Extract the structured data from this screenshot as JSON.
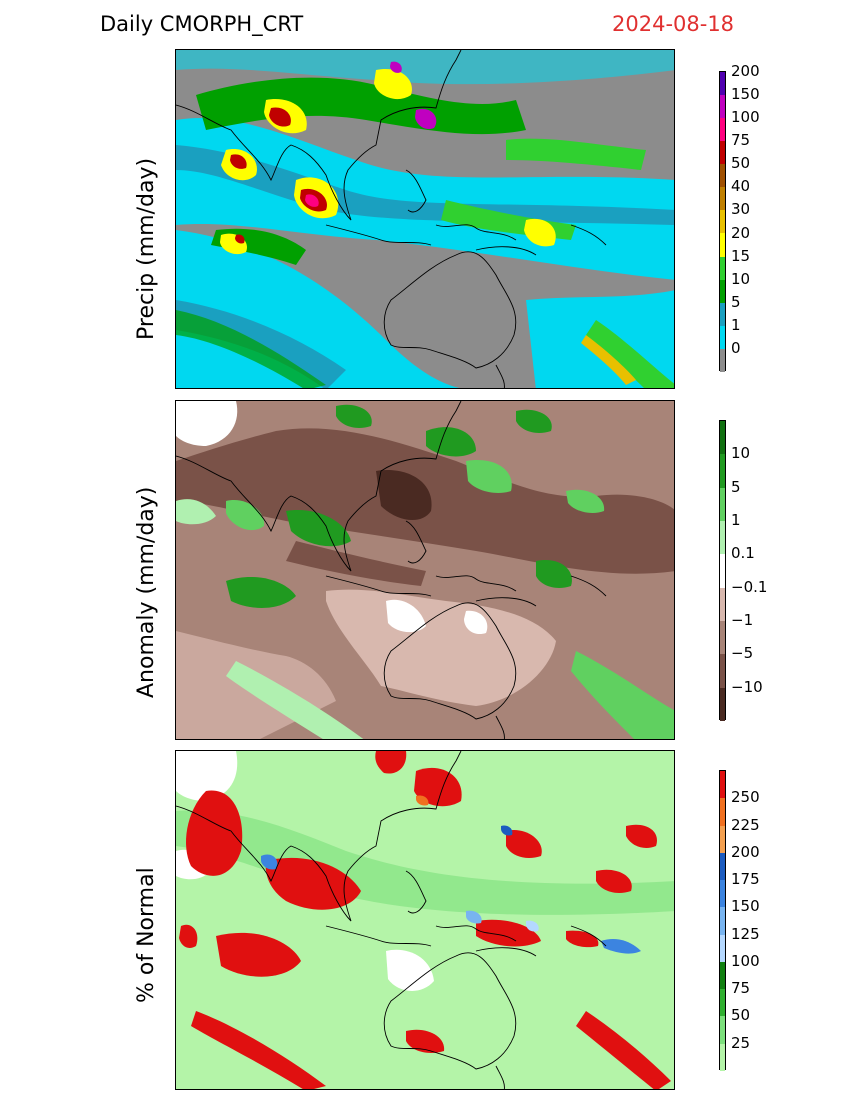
{
  "header": {
    "title_left": "Daily  CMORPH_CRT",
    "date": "2024-08-18"
  },
  "panels": [
    {
      "label": "Precip (mm/day)",
      "colorbar": {
        "colors": [
          "#8c8c8c",
          "#00d8f0",
          "#1aa0c0",
          "#00a000",
          "#30d030",
          "#ffff00",
          "#e8c000",
          "#c08000",
          "#a05000",
          "#c00000",
          "#ff0080",
          "#c000c0",
          "#5000b0"
        ],
        "labels": [
          "0",
          "1",
          "5",
          "10",
          "15",
          "20",
          "30",
          "40",
          "50",
          "75",
          "100",
          "150",
          "200"
        ]
      }
    },
    {
      "label": "Anomaly (mm/day)",
      "colorbar": {
        "colors": [
          "#4a2a22",
          "#7a5248",
          "#a88478",
          "#d8b8ae",
          "#ffffff",
          "#b0f0b0",
          "#60d060",
          "#209a20",
          "#107010"
        ],
        "labels": [
          "−10",
          "−5",
          "−1",
          "−0.1",
          "0.1",
          "1",
          "5",
          "10"
        ]
      }
    },
    {
      "label": "% of Normal",
      "colorbar": {
        "colors": [
          "#b4f4a8",
          "#7ce07c",
          "#30b030",
          "#108010",
          "#b4d8ff",
          "#78b4f0",
          "#3c84e0",
          "#1c5cc0",
          "#f4a050",
          "#f07020",
          "#e01010"
        ],
        "labels": [
          "25",
          "50",
          "75",
          "100",
          "125",
          "150",
          "175",
          "200",
          "225",
          "250"
        ]
      }
    }
  ]
}
